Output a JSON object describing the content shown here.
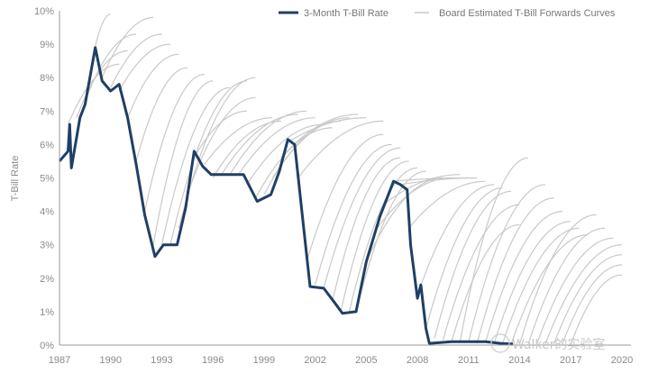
{
  "chart_data": {
    "type": "line",
    "title": "",
    "xlabel": "",
    "ylabel": "T-Bill Rate",
    "xlim": [
      1987,
      2020
    ],
    "ylim": [
      0,
      10
    ],
    "x_ticks": [
      "1987",
      "1990",
      "1993",
      "1996",
      "1999",
      "2002",
      "2005",
      "2008",
      "2011",
      "2014",
      "2017",
      "2020"
    ],
    "y_ticks": [
      "0%",
      "1%",
      "2%",
      "3%",
      "4%",
      "5%",
      "6%",
      "7%",
      "8%",
      "9%",
      "10%"
    ],
    "grid": false,
    "legend_position": "top-right",
    "legend": [
      "3-Month T-Bill Rate",
      "Board Estimated T-Bill Forwards Curves"
    ],
    "colors": {
      "rate": "#1f3f66",
      "forwards": "#c9c9c9",
      "axis": "#999999"
    },
    "series": [
      {
        "name": "3-Month T-Bill Rate",
        "x": [
          1987.0,
          1987.5,
          1987.6,
          1987.7,
          1988.2,
          1988.5,
          1989.1,
          1989.5,
          1990.0,
          1990.5,
          1991.0,
          1991.5,
          1992.0,
          1992.6,
          1993.1,
          1993.9,
          1994.4,
          1994.9,
          1995.4,
          1995.9,
          1996.7,
          1997.8,
          1998.6,
          1999.4,
          1999.9,
          2000.4,
          2000.8,
          2001.2,
          2001.7,
          2002.5,
          2003.1,
          2003.6,
          2004.4,
          2005.0,
          2005.8,
          2006.6,
          2007.0,
          2007.4,
          2007.6,
          2008.0,
          2008.2,
          2008.5,
          2008.7,
          2010.0,
          2012.0,
          2012.9,
          2013.6
        ],
        "y": [
          5.5,
          5.8,
          6.6,
          5.3,
          6.8,
          7.2,
          8.9,
          7.9,
          7.6,
          7.8,
          6.8,
          5.4,
          3.9,
          2.65,
          3.0,
          3.0,
          4.1,
          5.8,
          5.35,
          5.1,
          5.1,
          5.1,
          4.3,
          4.5,
          5.2,
          6.15,
          6.0,
          4.1,
          1.75,
          1.7,
          1.3,
          0.95,
          1.0,
          2.5,
          3.85,
          4.9,
          4.8,
          4.65,
          3.0,
          1.4,
          1.8,
          0.5,
          0.05,
          0.1,
          0.1,
          0.05,
          0.03
        ]
      },
      {
        "name": "Board Estimated T-Bill Forwards Curves",
        "curves": [
          [
            1987.5,
            6.6,
            1990.5,
            8.4
          ],
          [
            1988.0,
            6.8,
            1991.0,
            8.8
          ],
          [
            1988.5,
            7.3,
            1991.5,
            9.3
          ],
          [
            1989.0,
            8.7,
            1990.0,
            9.9
          ],
          [
            1989.5,
            8.0,
            1992.5,
            9.8
          ],
          [
            1990.0,
            7.7,
            1993.0,
            9.3
          ],
          [
            1990.5,
            7.6,
            1993.5,
            9.0
          ],
          [
            1991.0,
            6.8,
            1994.0,
            8.7
          ],
          [
            1991.5,
            5.5,
            1994.5,
            8.3
          ],
          [
            1992.0,
            4.0,
            1995.5,
            8.1
          ],
          [
            1992.5,
            3.0,
            1996.0,
            7.9
          ],
          [
            1993.0,
            3.0,
            1997.0,
            7.7
          ],
          [
            1993.5,
            3.0,
            1998.0,
            7.9
          ],
          [
            1994.0,
            3.5,
            1998.5,
            8.0
          ],
          [
            1994.5,
            4.5,
            1998.5,
            7.4
          ],
          [
            1995.0,
            5.7,
            1998.0,
            7.0
          ],
          [
            1995.5,
            5.4,
            1999.5,
            6.8
          ],
          [
            1996.0,
            5.0,
            2000.0,
            6.7
          ],
          [
            1996.5,
            5.1,
            2001.0,
            6.9
          ],
          [
            1997.0,
            5.1,
            2001.5,
            7.0
          ],
          [
            1997.5,
            5.1,
            2002.0,
            6.8
          ],
          [
            1998.0,
            4.8,
            2002.5,
            6.6
          ],
          [
            1998.5,
            4.4,
            2003.0,
            6.5
          ],
          [
            1999.0,
            4.5,
            2003.5,
            6.7
          ],
          [
            1999.5,
            5.0,
            2004.0,
            6.8
          ],
          [
            2000.0,
            5.6,
            2004.5,
            6.9
          ],
          [
            2000.5,
            6.1,
            2005.0,
            6.8
          ],
          [
            2001.0,
            5.0,
            2006.0,
            6.7
          ],
          [
            2001.5,
            2.5,
            2006.0,
            6.3
          ],
          [
            2002.0,
            1.8,
            2006.5,
            6.0
          ],
          [
            2002.5,
            1.7,
            2007.0,
            5.9
          ],
          [
            2003.0,
            1.3,
            2007.0,
            5.6
          ],
          [
            2003.5,
            1.0,
            2007.5,
            5.5
          ],
          [
            2004.0,
            1.0,
            2008.0,
            5.3
          ],
          [
            2004.5,
            1.2,
            2008.5,
            5.2
          ],
          [
            2005.0,
            2.5,
            2009.5,
            5.0
          ],
          [
            2005.5,
            3.4,
            2010.0,
            5.0
          ],
          [
            2006.0,
            4.2,
            2010.5,
            5.1
          ],
          [
            2006.5,
            4.9,
            2011.0,
            5.0
          ],
          [
            2007.0,
            4.8,
            2011.5,
            5.0
          ],
          [
            2007.5,
            3.5,
            2012.0,
            4.9
          ],
          [
            2008.0,
            1.5,
            2012.5,
            4.8
          ],
          [
            2008.5,
            0.5,
            2013.0,
            4.7
          ],
          [
            2009.0,
            0.2,
            2013.5,
            4.6
          ],
          [
            2009.5,
            0.15,
            2014.0,
            4.2
          ],
          [
            2010.0,
            0.1,
            2014.0,
            3.6
          ],
          [
            2010.5,
            0.1,
            2014.5,
            5.6
          ],
          [
            2011.0,
            0.1,
            2015.5,
            4.8
          ],
          [
            2011.5,
            0.05,
            2016.0,
            4.4
          ],
          [
            2012.0,
            0.1,
            2016.5,
            4.0
          ],
          [
            2012.5,
            0.05,
            2017.0,
            3.7
          ],
          [
            2013.0,
            0.05,
            2017.5,
            3.5
          ],
          [
            2013.5,
            0.03,
            2018.0,
            3.3
          ],
          [
            2014.0,
            0.03,
            2018.5,
            3.9
          ],
          [
            2014.5,
            0.03,
            2019.0,
            3.5
          ],
          [
            2015.0,
            0.03,
            2019.5,
            3.2
          ],
          [
            2015.5,
            0.03,
            2020.0,
            3.0
          ],
          [
            2016.0,
            0.03,
            2020.0,
            2.7
          ],
          [
            2016.5,
            0.03,
            2020.0,
            2.4
          ],
          [
            2017.0,
            0.03,
            2020.0,
            2.1
          ]
        ]
      }
    ]
  },
  "watermark": "Walker的实验室"
}
